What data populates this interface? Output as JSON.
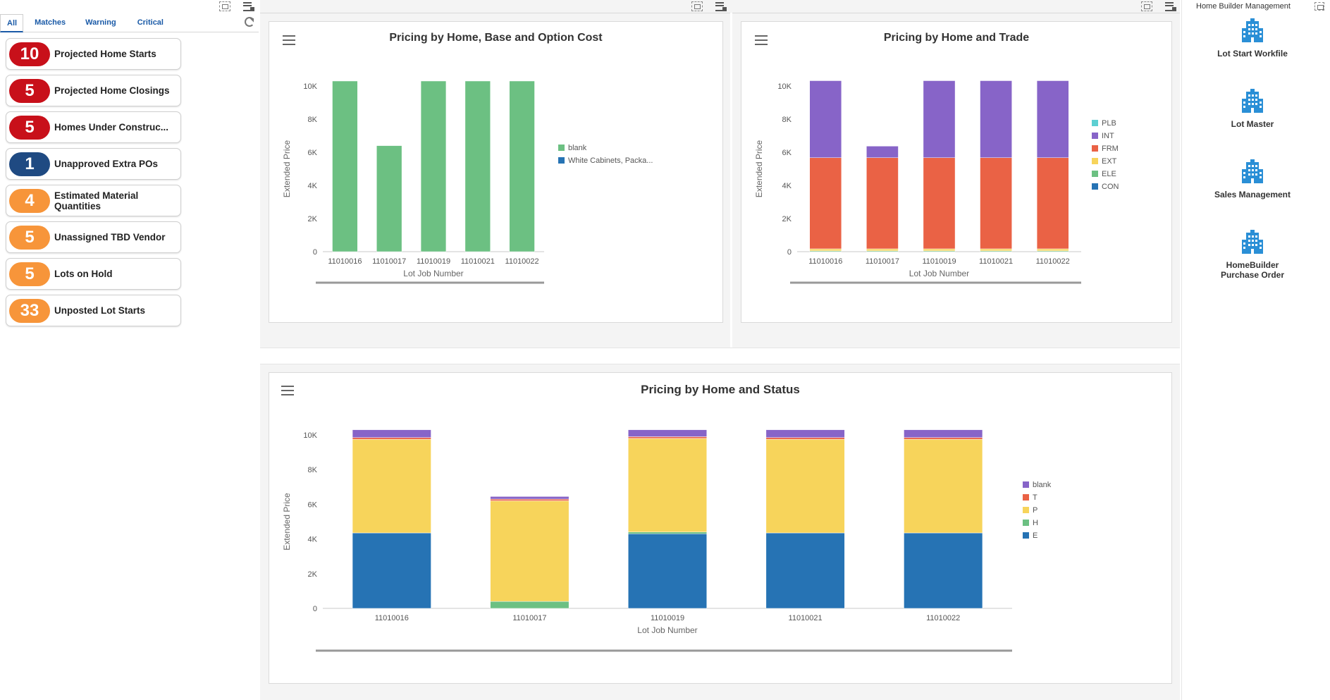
{
  "watchlist": {
    "tabs": [
      "All",
      "Matches",
      "Warning",
      "Critical"
    ],
    "items": [
      {
        "count": "10",
        "label": "Projected Home Starts",
        "level": "critical"
      },
      {
        "count": "5",
        "label": "Projected Home Closings",
        "level": "critical"
      },
      {
        "count": "5",
        "label": "Homes Under Construc...",
        "level": "critical"
      },
      {
        "count": "1",
        "label": "Unapproved Extra POs",
        "level": "info"
      },
      {
        "count": "4",
        "label": "Estimated Material Quantities",
        "level": "warning"
      },
      {
        "count": "5",
        "label": "Unassigned TBD Vendor",
        "level": "warning"
      },
      {
        "count": "5",
        "label": "Lots on Hold",
        "level": "warning"
      },
      {
        "count": "33",
        "label": "Unposted Lot Starts",
        "level": "warning"
      }
    ]
  },
  "launchpad": {
    "title": "Home Builder Management",
    "items": [
      "Lot Start Workfile",
      "Lot Master",
      "Sales Management",
      "HomeBuilder Purchase Order"
    ]
  },
  "chart_data": [
    {
      "type": "bar",
      "title": "Pricing by Home, Base and Option Cost",
      "xlabel": "Lot Job Number",
      "ylabel": "Extended Price",
      "ylim": [
        0,
        10000
      ],
      "yticks": [
        "0",
        "2K",
        "4K",
        "6K",
        "8K",
        "10K"
      ],
      "categories": [
        "11010016",
        "11010017",
        "11010019",
        "11010021",
        "11010022"
      ],
      "series": [
        {
          "name": "blank",
          "color": "#6cc082",
          "values": [
            10300,
            6400,
            10300,
            10300,
            10300
          ]
        },
        {
          "name": "White Cabinets, Packa...",
          "color": "#2673b4",
          "values": [
            0,
            0,
            0,
            0,
            0
          ]
        }
      ]
    },
    {
      "type": "bar",
      "stacked": true,
      "title": "Pricing by Home and Trade",
      "xlabel": "Lot Job Number",
      "ylabel": "Extended Price",
      "ylim": [
        0,
        10000
      ],
      "yticks": [
        "0",
        "2K",
        "4K",
        "6K",
        "8K",
        "10K"
      ],
      "categories": [
        "11010016",
        "11010017",
        "11010019",
        "11010021",
        "11010022"
      ],
      "series": [
        {
          "name": "CON",
          "color": "#2673b4",
          "values": [
            0,
            0,
            0,
            0,
            0
          ]
        },
        {
          "name": "ELE",
          "color": "#6cc082",
          "values": [
            50,
            50,
            50,
            50,
            50
          ]
        },
        {
          "name": "EXT",
          "color": "#f7d45b",
          "values": [
            120,
            120,
            120,
            120,
            120
          ]
        },
        {
          "name": "FRM",
          "color": "#ea6245",
          "values": [
            5500,
            5500,
            5500,
            5500,
            5500
          ]
        },
        {
          "name": "INT",
          "color": "#8764c8",
          "values": [
            4650,
            700,
            4650,
            4650,
            4650
          ]
        },
        {
          "name": "PLB",
          "color": "#5dcfd2",
          "values": [
            0,
            0,
            0,
            0,
            0
          ]
        }
      ]
    },
    {
      "type": "bar",
      "stacked": true,
      "title": "Pricing by Home and Status",
      "xlabel": "Lot Job Number",
      "ylabel": "Extended Price",
      "ylim": [
        0,
        10000
      ],
      "yticks": [
        "0",
        "2K",
        "4K",
        "6K",
        "8K",
        "10K"
      ],
      "categories": [
        "11010016",
        "11010017",
        "11010019",
        "11010021",
        "11010022"
      ],
      "series": [
        {
          "name": "E",
          "color": "#2673b4",
          "values": [
            4350,
            0,
            4300,
            4350,
            4350
          ]
        },
        {
          "name": "H",
          "color": "#6cc082",
          "values": [
            0,
            400,
            100,
            0,
            0
          ]
        },
        {
          "name": "P",
          "color": "#f7d45b",
          "values": [
            5400,
            5800,
            5400,
            5400,
            5400
          ]
        },
        {
          "name": "T",
          "color": "#ea6245",
          "values": [
            100,
            100,
            100,
            100,
            100
          ]
        },
        {
          "name": "blank",
          "color": "#8764c8",
          "values": [
            450,
            150,
            400,
            450,
            450
          ]
        }
      ]
    }
  ]
}
